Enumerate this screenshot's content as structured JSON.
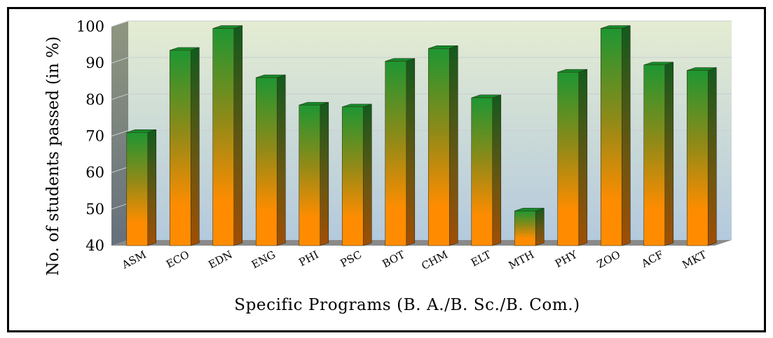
{
  "chart_data": {
    "type": "bar",
    "style": "3d-column",
    "ylabel": "No. of students passed (in %)",
    "xlabel": "Specific Programs (B. A./B. Sc./B. Com.)",
    "ylim": [
      40,
      100
    ],
    "yticks": [
      40,
      50,
      60,
      70,
      80,
      90,
      100
    ],
    "grid": true,
    "legend": "none",
    "categories": [
      "ASM",
      "ECO",
      "EDN",
      "ENG",
      "PHI",
      "PSC",
      "BOT",
      "CHM",
      "ELT",
      "MTH",
      "PHY",
      "ZOO",
      "ACF",
      "MKT"
    ],
    "values": [
      71,
      93.5,
      99.5,
      86,
      78.5,
      78,
      90.5,
      94,
      80.5,
      49.5,
      87.5,
      99.5,
      89.5,
      88
    ],
    "colors": {
      "bar_top": "#1e9632",
      "bar_mid": "#8f8a18",
      "bar_bottom": "#ff8c00",
      "bar_side_top": "#125a1e",
      "bar_side_bottom": "#a04e05",
      "wall_top": "#e4ecd2",
      "wall_bottom": "#b3c9dd",
      "floor": "#8a8a8a"
    }
  }
}
